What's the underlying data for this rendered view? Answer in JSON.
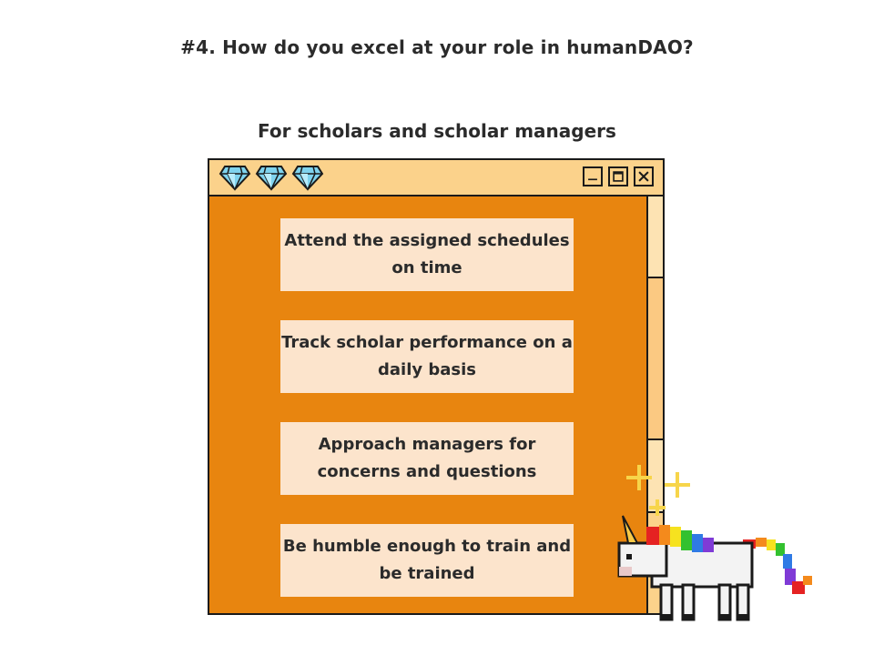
{
  "page": {
    "title": "#4. How do you excel at your role in humanDAO?",
    "section": "For scholars and scholar managers"
  },
  "window": {
    "title_icons": [
      "diamond-icon",
      "diamond-icon",
      "diamond-icon"
    ],
    "controls": [
      "minimize-icon",
      "maximize-icon",
      "close-icon"
    ]
  },
  "cards": [
    {
      "text": "Attend the assigned schedules on time"
    },
    {
      "text": "Track scholar performance on a daily basis"
    },
    {
      "text": "Approach managers for concerns and questions"
    },
    {
      "text": "Be humble enough to train and be trained"
    }
  ],
  "colors": {
    "window_bg": "#e8850f",
    "titlebar": "#fbd28b",
    "card_bg": "#fce4cc",
    "text": "#2b2b2b"
  }
}
